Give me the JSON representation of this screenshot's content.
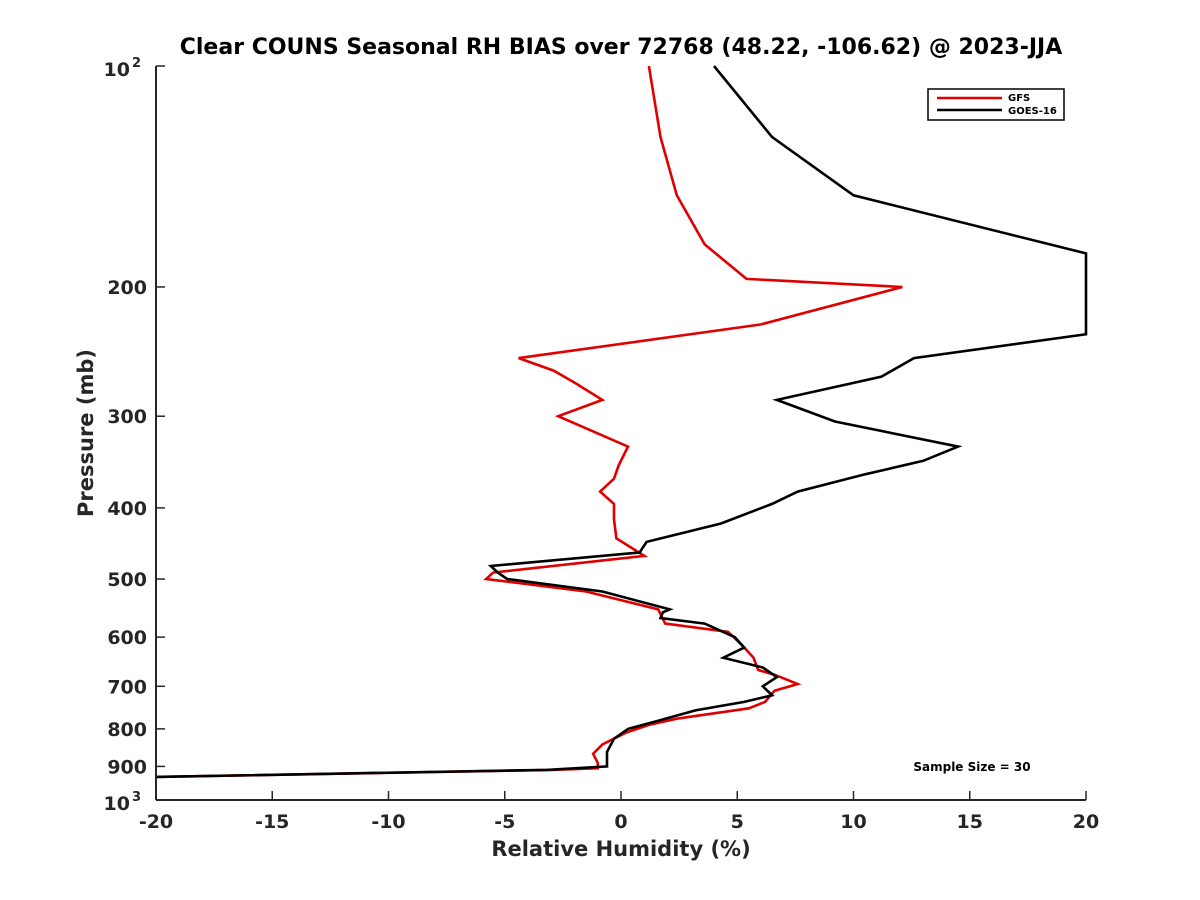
{
  "chart_data": {
    "type": "line",
    "title": "Clear COUNS Seasonal RH BIAS over 72768 (48.22, -106.62) @ 2023-JJA",
    "xlabel": "Relative Humidity (%)",
    "ylabel": "Pressure (mb)",
    "xlim": [
      -20,
      20
    ],
    "ylim": [
      100,
      1000
    ],
    "yscale": "log",
    "yreversed": true,
    "grid": false,
    "legend_position": "top-right",
    "annotation": "Sample Size = 30",
    "xticks": [
      -20,
      -15,
      -10,
      -5,
      0,
      5,
      10,
      15,
      20
    ],
    "xtick_labels": [
      "-20",
      "-15",
      "-10",
      "-5",
      "0",
      "5",
      "10",
      "15",
      "20"
    ],
    "yticks": [
      200,
      300,
      400,
      500,
      600,
      700,
      800,
      900
    ],
    "ytick_labels": [
      "200",
      "300",
      "400",
      "500",
      "600",
      "700",
      "800",
      "900"
    ],
    "ytick_top": {
      "base": "10",
      "exp": "2"
    },
    "ytick_bottom": {
      "base": "10",
      "exp": "3"
    },
    "series": [
      {
        "name": "GFS",
        "color": "#e00000",
        "points": [
          [
            1.2,
            100
          ],
          [
            1.7,
            125
          ],
          [
            2.4,
            150
          ],
          [
            3.6,
            175
          ],
          [
            5.4,
            195
          ],
          [
            12.1,
            200
          ],
          [
            6.0,
            225
          ],
          [
            -4.4,
            250
          ],
          [
            -2.9,
            260
          ],
          [
            -2.0,
            270
          ],
          [
            -0.8,
            285
          ],
          [
            -2.7,
            300
          ],
          [
            0.3,
            330
          ],
          [
            -0.1,
            350
          ],
          [
            -0.3,
            365
          ],
          [
            -0.9,
            380
          ],
          [
            -0.3,
            395
          ],
          [
            -0.3,
            415
          ],
          [
            -0.2,
            440
          ],
          [
            1.0,
            465
          ],
          [
            -5.5,
            490
          ],
          [
            -5.8,
            500
          ],
          [
            -1.5,
            520
          ],
          [
            1.6,
            550
          ],
          [
            1.9,
            575
          ],
          [
            4.6,
            590
          ],
          [
            5.2,
            615
          ],
          [
            5.7,
            640
          ],
          [
            5.9,
            665
          ],
          [
            6.6,
            675
          ],
          [
            7.6,
            695
          ],
          [
            6.6,
            710
          ],
          [
            6.2,
            735
          ],
          [
            5.5,
            750
          ],
          [
            2.4,
            775
          ],
          [
            1.2,
            790
          ],
          [
            0.2,
            810
          ],
          [
            -0.8,
            840
          ],
          [
            -1.2,
            865
          ],
          [
            -1.0,
            890
          ],
          [
            -1.0,
            905
          ],
          [
            -3.0,
            910
          ],
          [
            -20.0,
            930
          ]
        ]
      },
      {
        "name": "GOES-16",
        "color": "#000000",
        "points": [
          [
            4.0,
            100
          ],
          [
            6.5,
            125
          ],
          [
            10.0,
            150
          ],
          [
            20.0,
            180
          ],
          [
            20.0,
            232
          ],
          [
            12.6,
            250
          ],
          [
            11.2,
            265
          ],
          [
            6.7,
            285
          ],
          [
            9.2,
            305
          ],
          [
            14.5,
            330
          ],
          [
            13.0,
            345
          ],
          [
            10.5,
            360
          ],
          [
            7.6,
            380
          ],
          [
            6.5,
            395
          ],
          [
            4.3,
            420
          ],
          [
            1.1,
            445
          ],
          [
            0.8,
            460
          ],
          [
            -5.6,
            480
          ],
          [
            -5.3,
            490
          ],
          [
            -4.9,
            500
          ],
          [
            -0.8,
            520
          ],
          [
            2.1,
            550
          ],
          [
            1.8,
            555
          ],
          [
            1.7,
            565
          ],
          [
            3.6,
            575
          ],
          [
            4.9,
            600
          ],
          [
            5.3,
            620
          ],
          [
            4.4,
            640
          ],
          [
            6.1,
            660
          ],
          [
            6.7,
            680
          ],
          [
            6.1,
            700
          ],
          [
            6.5,
            720
          ],
          [
            5.3,
            735
          ],
          [
            3.2,
            755
          ],
          [
            1.6,
            780
          ],
          [
            0.3,
            800
          ],
          [
            -0.3,
            825
          ],
          [
            -0.6,
            860
          ],
          [
            -0.6,
            900
          ],
          [
            -3.2,
            910
          ],
          [
            -20.0,
            930
          ]
        ]
      }
    ]
  }
}
